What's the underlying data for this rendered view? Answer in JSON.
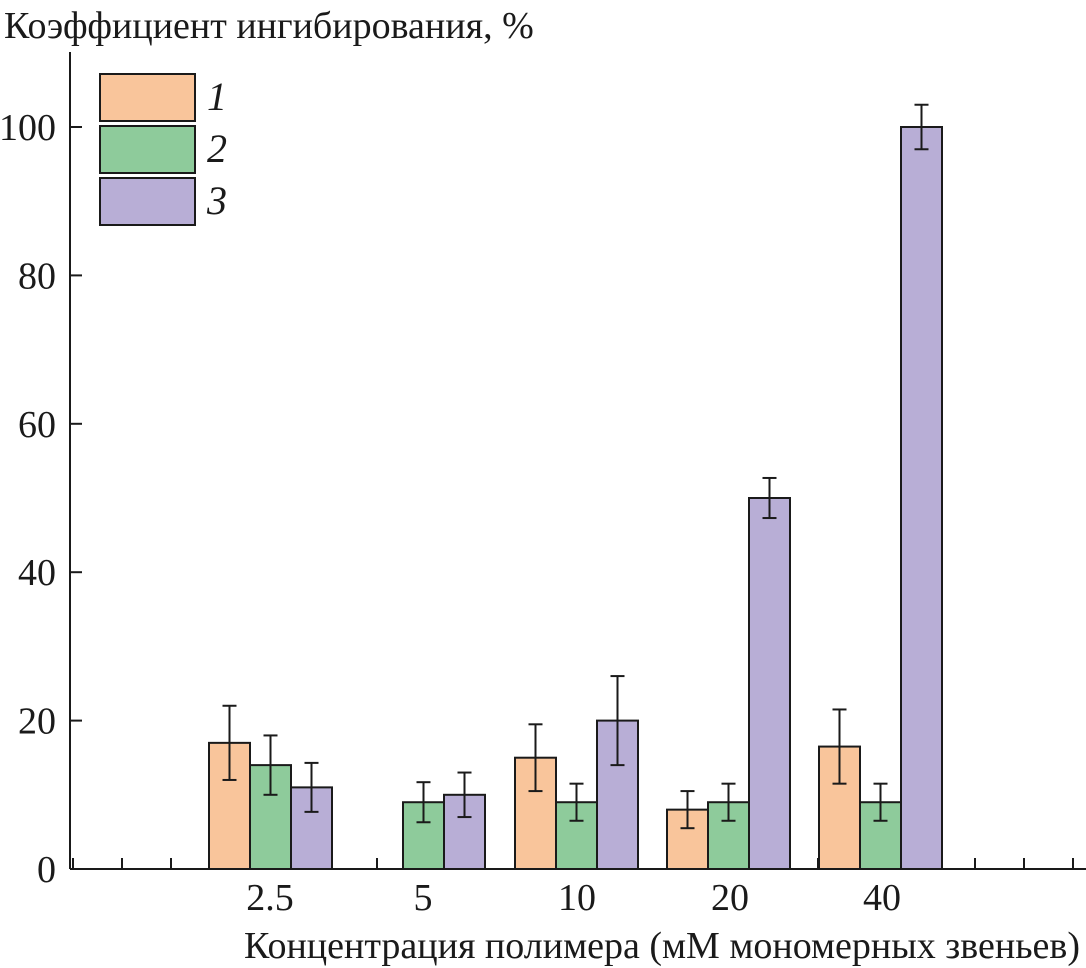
{
  "chart_data": {
    "type": "bar",
    "title": "",
    "ylabel": "Коэффициент ингибирования, %",
    "xlabel": "Концентрация полимера (мМ мономерных звеньев)",
    "categories": [
      "2.5",
      "5",
      "10",
      "20",
      "40"
    ],
    "ylim": [
      0,
      110
    ],
    "yticks": [
      0,
      20,
      40,
      60,
      80,
      100
    ],
    "grid": false,
    "legend_position": "top-left",
    "series": [
      {
        "name": "1",
        "color": "#f9c59b",
        "values": [
          17,
          null,
          15,
          8,
          16.5
        ],
        "errors": [
          5,
          null,
          4.5,
          2.5,
          5
        ]
      },
      {
        "name": "2",
        "color": "#8ecb9b",
        "values": [
          14,
          9,
          9,
          9,
          9
        ],
        "errors": [
          4,
          2.7,
          2.5,
          2.5,
          2.5
        ]
      },
      {
        "name": "3",
        "color": "#b8aed6",
        "values": [
          11,
          10,
          20,
          50,
          100
        ],
        "errors": [
          3.3,
          3,
          6,
          2.7,
          3
        ]
      }
    ]
  }
}
